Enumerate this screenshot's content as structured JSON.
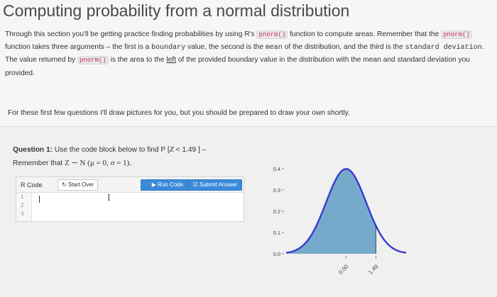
{
  "page": {
    "title": "Computing probability from a normal distribution"
  },
  "intro": {
    "s1": "Through this section you'll be getting practice finding probabilities by using R's ",
    "fn": "pnorm()",
    "s2": " function to compute areas. Remember that the ",
    "s3": " function takes three arguments – the first is a ",
    "boundary": "boundary",
    "s4": " value, the second is the ",
    "mean": "mean",
    "s5": " of the distribution, and the third is the ",
    "sd": "standard deviation",
    "s6": ". The value returned by ",
    "s7": " is the area to the ",
    "left": "left",
    "s8": " of the provided boundary value in the distribution with the mean and standard deviation you provided."
  },
  "note": "For these first few questions I'll draw pictures for you, but you should be prepared to draw your own shortly.",
  "question": {
    "label": "Question 1:",
    "text": " Use the code block below to find P [",
    "z": "Z",
    "lt": " < 1.49 ] –",
    "line2_pre": "Remember that ",
    "dist": "Z ∼ N (μ = 0, σ = 1)."
  },
  "editor": {
    "lang_label": "R Code",
    "start_over": "Start Over",
    "run_code": "Run Code",
    "submit": "Submit Answer",
    "line_numbers": [
      "1",
      "2",
      "3"
    ]
  },
  "plot": {
    "y_ticks": [
      "0.4",
      "0.3",
      "0.2",
      "0.1",
      "0.0"
    ],
    "x_ticks": [
      "0.00",
      "1.49"
    ]
  },
  "chart_data": {
    "type": "area",
    "distribution": "normal",
    "mean": 0,
    "sd": 1,
    "shade_below": 1.49,
    "x_ticks": [
      0.0,
      1.49
    ],
    "y_ticks": [
      0.0,
      0.1,
      0.2,
      0.3,
      0.4
    ],
    "xlim": [
      -3,
      3
    ],
    "ylim": [
      0,
      0.42
    ]
  },
  "colors": {
    "curve": "#3a3ad0",
    "fill": "#5f9ec3",
    "button": "#3b8ad9",
    "code_text": "#c0305c"
  }
}
